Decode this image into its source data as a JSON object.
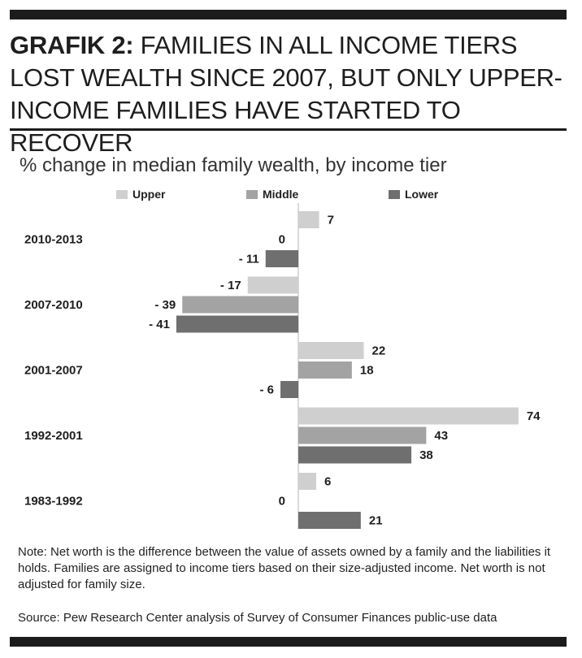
{
  "header": {
    "label": "GRAFIK 2:",
    "title": " FAMILIES IN ALL INCOME TIERS LOST WEALTH SINCE 2007, BUT ONLY UPPER-INCOME FAMILIES HAVE STARTED TO RECOVER"
  },
  "colors": {
    "upper": "#cfcfcf",
    "middle": "#a3a3a3",
    "lower": "#6f6f6f",
    "rule": "#1c1c1c"
  },
  "chart_data": {
    "type": "bar",
    "orientation": "horizontal",
    "title": "% change in median family wealth, by income tier",
    "categories": [
      "2010-2013",
      "2007-2010",
      "2001-2007",
      "1992-2001",
      "1983-1992"
    ],
    "series": [
      {
        "name": "Upper",
        "values": [
          7,
          -17,
          22,
          74,
          6
        ]
      },
      {
        "name": "Middle",
        "values": [
          0,
          -39,
          18,
          43,
          0
        ]
      },
      {
        "name": "Lower",
        "values": [
          -11,
          -41,
          -6,
          38,
          21
        ]
      }
    ],
    "value_labels": [
      [
        "7",
        "0",
        "- 11"
      ],
      [
        "- 17",
        "- 39",
        "- 41"
      ],
      [
        "22",
        "18",
        "- 6"
      ],
      [
        "74",
        "43",
        "38"
      ],
      [
        "6",
        "0",
        "21"
      ]
    ],
    "legend": "top",
    "grid": false
  },
  "notes": {
    "note": "Note: Net worth is the difference between the value of assets owned by a family and the liabilities it holds. Families are assigned to income tiers based on their size-adjusted income. Net worth is not adjusted for family size.",
    "source": "Source: Pew Research Center analysis of Survey of Consumer Finances public-use data"
  }
}
